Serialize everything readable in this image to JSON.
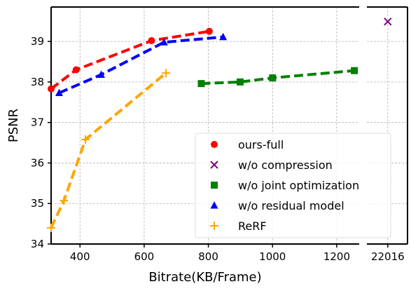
{
  "chart_data": {
    "type": "line",
    "xlabel": "Bitrate(KB/Frame)",
    "ylabel": "PSNR",
    "grid": true,
    "legend_position": "bottom-right",
    "broken_x_axis": true,
    "main_panel": {
      "xlim": [
        310,
        1270
      ],
      "xticks": [
        400,
        600,
        800,
        1000,
        1200
      ],
      "ylim": [
        34,
        39.85
      ],
      "yticks": [
        34,
        35,
        36,
        37,
        38,
        39
      ]
    },
    "side_panel": {
      "xlim": [
        21980,
        22050
      ],
      "xticks": [
        22016
      ]
    },
    "series": [
      {
        "name": "ours-full",
        "color": "#ff0000",
        "marker": "circle",
        "dashed": true,
        "panel": "main",
        "points": [
          [
            310,
            37.83
          ],
          [
            388,
            38.3
          ],
          [
            623,
            39.02
          ],
          [
            803,
            39.25
          ]
        ]
      },
      {
        "name": "w/o compression",
        "color": "#800080",
        "marker": "x",
        "dashed": false,
        "panel": "side",
        "points": [
          [
            22016,
            39.49
          ]
        ]
      },
      {
        "name": "w/o joint optimization",
        "color": "#008000",
        "marker": "square",
        "dashed": true,
        "panel": "main",
        "points": [
          [
            778,
            37.96
          ],
          [
            899,
            38.0
          ],
          [
            1000,
            38.1
          ],
          [
            1255,
            38.28
          ]
        ]
      },
      {
        "name": "w/o residual model",
        "color": "#0000ff",
        "marker": "triangle",
        "dashed": true,
        "panel": "main",
        "points": [
          [
            335,
            37.73
          ],
          [
            466,
            38.18
          ],
          [
            662,
            38.98
          ],
          [
            846,
            39.11
          ]
        ]
      },
      {
        "name": "ReRF",
        "color": "#ffa500",
        "marker": "plus",
        "dashed": true,
        "panel": "main",
        "points": [
          [
            310,
            34.4
          ],
          [
            350,
            35.07
          ],
          [
            417,
            36.58
          ],
          [
            668,
            38.22
          ]
        ]
      }
    ]
  }
}
